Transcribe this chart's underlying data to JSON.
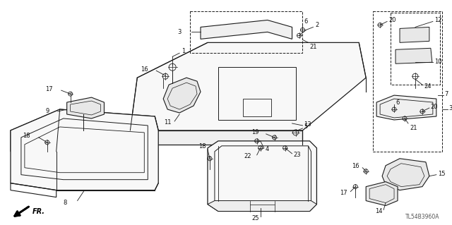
{
  "bg_color": "#ffffff",
  "line_color": "#1a1a1a",
  "text_color": "#111111",
  "diagram_code": "TL54B3960A",
  "label_fontsize": 6.0,
  "figsize": [
    6.4,
    3.19
  ],
  "dpi": 100
}
